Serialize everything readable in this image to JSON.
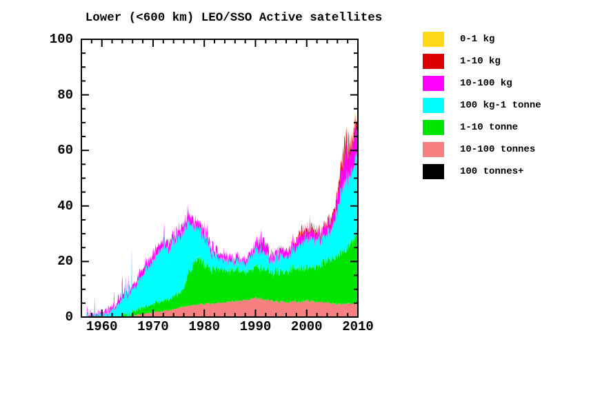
{
  "window": {
    "background": "#ffffff",
    "text_color": "#000000",
    "axis_color": "#000000"
  },
  "chart_data": {
    "type": "area",
    "stacked": true,
    "title": "Lower (<600 km) LEO/SSO Active satellites",
    "xlabel": "",
    "ylabel": "",
    "xlim": [
      1956,
      2010
    ],
    "ylim": [
      0,
      100
    ],
    "x_major_ticks": [
      1960,
      1970,
      1980,
      1990,
      2000,
      2010
    ],
    "x_minor_step": 2,
    "y_major_ticks": [
      0,
      20,
      40,
      60,
      80,
      100
    ],
    "y_minor_step": 5,
    "grid": false,
    "legend_position": "right",
    "x_years": [
      1957,
      1958,
      1959,
      1960,
      1961,
      1962,
      1963,
      1964,
      1965,
      1966,
      1967,
      1968,
      1969,
      1970,
      1971,
      1972,
      1973,
      1974,
      1975,
      1976,
      1977,
      1978,
      1979,
      1980,
      1981,
      1982,
      1983,
      1984,
      1985,
      1986,
      1987,
      1988,
      1989,
      1990,
      1991,
      1992,
      1993,
      1994,
      1995,
      1996,
      1997,
      1998,
      1999,
      2000,
      2001,
      2002,
      2003,
      2004,
      2005,
      2006,
      2007,
      2007.5,
      2008,
      2008.5,
      2009,
      2009.5,
      2010
    ],
    "series": [
      {
        "name": "100 tonnes+",
        "color": "#000000",
        "values": [
          0,
          0,
          1.2,
          0.2,
          0,
          0,
          0,
          0,
          0,
          0,
          0,
          0,
          0,
          0,
          0,
          0,
          0,
          0,
          0,
          0,
          0,
          0,
          0,
          0,
          0,
          0,
          0,
          0.25,
          0.3,
          0.25,
          0.2,
          0.35,
          0.35,
          0.35,
          0.35,
          0.35,
          0.3,
          0.35,
          0.3,
          0.3,
          0.25,
          0.1,
          0.25,
          0.3,
          0.3,
          0.25,
          0.3,
          0.25,
          0.2,
          0.1,
          0.2,
          0.3,
          0.3,
          0.3,
          0.25,
          0.3,
          0.3
        ]
      },
      {
        "name": "10-100 tonnes",
        "color": "#F98080",
        "values": [
          0,
          0,
          0,
          0,
          0,
          0,
          0,
          0,
          0,
          0.5,
          0.9,
          1.1,
          1.3,
          1.7,
          1.9,
          2.1,
          2.4,
          2.8,
          3.3,
          3.8,
          4.0,
          4.3,
          4.4,
          4.7,
          4.8,
          5.0,
          5.2,
          5.3,
          5.4,
          5.6,
          5.7,
          5.9,
          6.2,
          6.5,
          6.6,
          6.0,
          5.7,
          5.5,
          5.4,
          5.3,
          5.3,
          5.4,
          5.5,
          5.8,
          5.6,
          5.3,
          5.1,
          5.0,
          4.9,
          4.8,
          4.7,
          4.7,
          4.7,
          4.65,
          4.6,
          4.7,
          4.8
        ]
      },
      {
        "name": "1-10 tonne",
        "color": "#00E500",
        "values": [
          0,
          0,
          0,
          0,
          0,
          0,
          0,
          0.3,
          0.8,
          1.2,
          1.8,
          2.1,
          2.5,
          3.0,
          3.5,
          3.9,
          4.1,
          4.7,
          5.2,
          6.7,
          12.0,
          15.7,
          16.6,
          14.3,
          12.7,
          12.0,
          11.8,
          12.2,
          11.1,
          11.4,
          10.8,
          10.6,
          10.3,
          10.5,
          10.9,
          11.0,
          10.3,
          10.5,
          11.1,
          10.7,
          11.7,
          12.1,
          12.0,
          11.7,
          12.4,
          12.7,
          13.9,
          15.0,
          16.1,
          17.2,
          18.8,
          19.5,
          20.3,
          21.3,
          22.4,
          23.6,
          25.2
        ]
      },
      {
        "name": "100 kg-1 tonne",
        "color": "#00FFFF",
        "values": [
          0,
          0.3,
          0.5,
          0.7,
          1.2,
          2.5,
          3.5,
          5.7,
          7.2,
          8.3,
          9.5,
          11.5,
          14.0,
          15.3,
          17.4,
          20.0,
          18.0,
          19.5,
          20.5,
          21.0,
          18.5,
          13.0,
          10.5,
          10.0,
          7.5,
          5.0,
          3.5,
          3.5,
          3.0,
          3.0,
          3.0,
          3.0,
          4.5,
          5.5,
          6.5,
          5.5,
          4.5,
          5.0,
          6.0,
          5.5,
          5.5,
          7.0,
          9.0,
          10.0,
          10.5,
          9.0,
          9.0,
          10.0,
          11.0,
          15.5,
          23.0,
          26.0,
          24.5,
          23.5,
          25.5,
          26.5,
          28.0
        ]
      },
      {
        "name": "10-100 kg",
        "color": "#FF00FF",
        "values": [
          0.2,
          0.5,
          0.5,
          0.3,
          0.6,
          1.0,
          1.0,
          1.5,
          1.5,
          1.5,
          1.5,
          2.0,
          2.0,
          2.0,
          2.5,
          2.5,
          2.0,
          2.0,
          2.5,
          2.5,
          2.5,
          2.0,
          2.5,
          2.5,
          2.0,
          2.0,
          1.5,
          1.5,
          1.5,
          1.5,
          1.0,
          1.5,
          1.5,
          2.0,
          5.0,
          3.5,
          2.0,
          2.0,
          2.0,
          2.0,
          2.0,
          2.5,
          3.0,
          2.5,
          3.0,
          2.5,
          2.5,
          3.0,
          3.0,
          4.5,
          7.5,
          10.0,
          9.0,
          8.0,
          8.5,
          9.5,
          11.0
        ]
      },
      {
        "name": "1-10 kg",
        "color": "#DD0000",
        "values": [
          0,
          0,
          0,
          0,
          0,
          0,
          0,
          0.3,
          0.1,
          0.1,
          0.2,
          0.1,
          0.1,
          0.1,
          0,
          0,
          0,
          0,
          0,
          0,
          0,
          0,
          0,
          0,
          0,
          0,
          0,
          0,
          0,
          0,
          0,
          0,
          0,
          0,
          0,
          0,
          0,
          0,
          0,
          0.2,
          0.4,
          0.9,
          1.4,
          1.0,
          1.2,
          0.7,
          0.8,
          0.9,
          1.1,
          1.4,
          3.0,
          4.0,
          3.5,
          2.8,
          2.6,
          2.8,
          3.2
        ]
      },
      {
        "name": "0-1 kg",
        "color": "#FFD918",
        "values": [
          0,
          0,
          0,
          0,
          0,
          0,
          0,
          0,
          0,
          0,
          0,
          0,
          0,
          0,
          0,
          0,
          0,
          0,
          0,
          0,
          0,
          0,
          0,
          0,
          0,
          0,
          0,
          0,
          0,
          0,
          0,
          0,
          0,
          0,
          0,
          0,
          0,
          0,
          0,
          0,
          0,
          0,
          0,
          0,
          0,
          0,
          0,
          0,
          0,
          0,
          0.1,
          0.2,
          0.3,
          0.4,
          0.6,
          0.8,
          1.0
        ]
      }
    ],
    "legend": [
      {
        "label": "0-1 kg",
        "color": "#FFD918"
      },
      {
        "label": "1-10 kg",
        "color": "#DD0000"
      },
      {
        "label": "10-100 kg",
        "color": "#FF00FF"
      },
      {
        "label": "100 kg-1 tonne",
        "color": "#00FFFF"
      },
      {
        "label": "1-10 tonne",
        "color": "#00E500"
      },
      {
        "label": "10-100 tonnes",
        "color": "#F98080"
      },
      {
        "label": "100 tonnes+",
        "color": "#000000"
      }
    ]
  }
}
